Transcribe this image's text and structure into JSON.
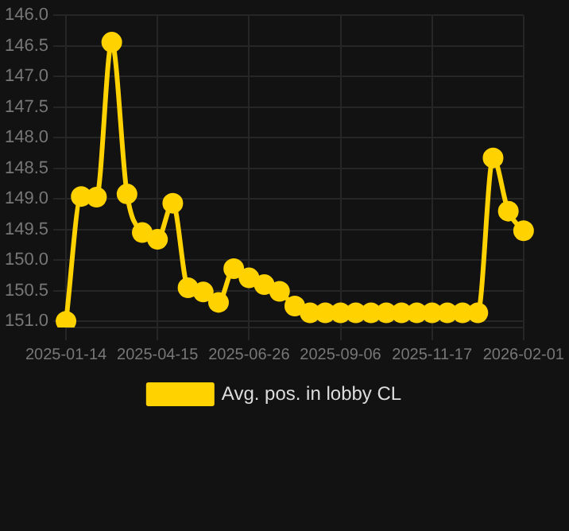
{
  "chart_data": {
    "type": "line",
    "categories": [
      "2025-01-14",
      null,
      null,
      null,
      null,
      null,
      "2025-04-15",
      null,
      null,
      null,
      null,
      null,
      "2025-06-26",
      null,
      null,
      null,
      null,
      null,
      "2025-09-06",
      null,
      null,
      null,
      null,
      null,
      "2025-11-17",
      null,
      null,
      null,
      null,
      null,
      "2026-02-01"
    ],
    "series": [
      {
        "name": "Avg. pos. in lobby CL",
        "color": "#ffd200",
        "values": [
          151.0,
          148.96,
          148.97,
          146.44,
          148.92,
          149.55,
          149.66,
          149.07,
          150.45,
          150.52,
          150.69,
          150.14,
          150.29,
          150.4,
          150.51,
          150.75,
          150.86,
          150.86,
          150.86,
          150.86,
          150.86,
          150.86,
          150.86,
          150.86,
          150.86,
          150.86,
          150.86,
          150.86,
          148.33,
          149.2,
          149.52
        ]
      }
    ],
    "ylim": [
      151.1,
      146.0
    ],
    "yticks": [
      {
        "value": 146.0,
        "label": "146.0"
      },
      {
        "value": 146.5,
        "label": "146.5"
      },
      {
        "value": 147.0,
        "label": "147.0"
      },
      {
        "value": 147.5,
        "label": "147.5"
      },
      {
        "value": 148.0,
        "label": "148.0"
      },
      {
        "value": 148.5,
        "label": "148.5"
      },
      {
        "value": 149.0,
        "label": "149.0"
      },
      {
        "value": 149.5,
        "label": "149.5"
      },
      {
        "value": 150.0,
        "label": "150.0"
      },
      {
        "value": 150.5,
        "label": "150.5"
      },
      {
        "value": 151.0,
        "label": "151.0"
      }
    ],
    "grid": true,
    "legend": "bottom",
    "marker": "circle",
    "line_style": "solid"
  }
}
